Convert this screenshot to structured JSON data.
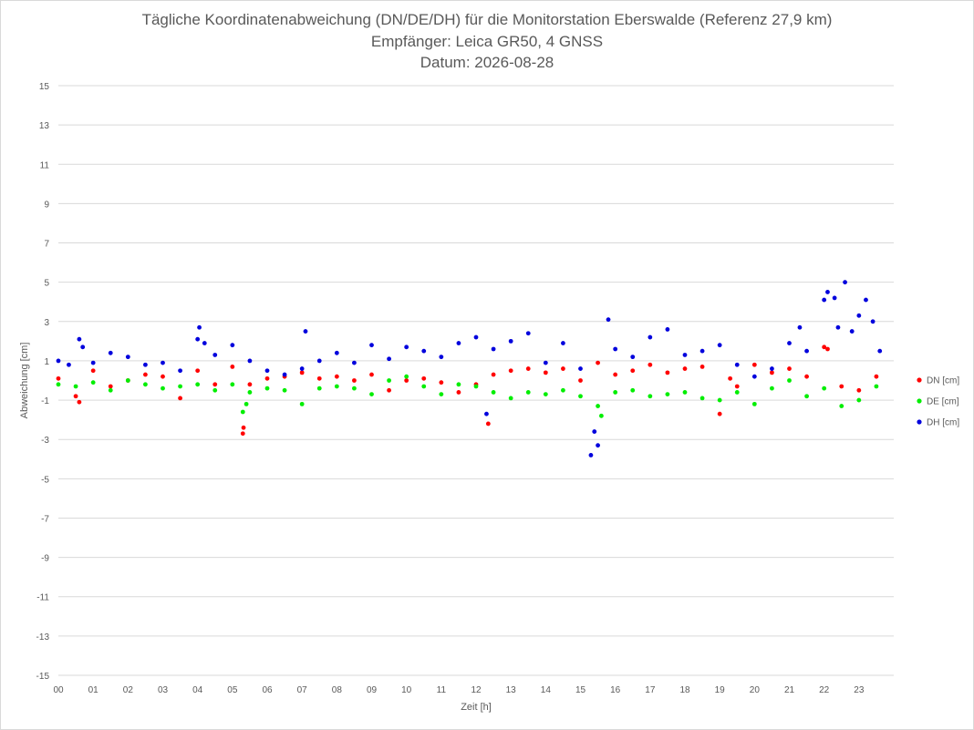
{
  "chart_data": {
    "type": "scatter",
    "title_lines": [
      "Tägliche Koordinatenabweichung (DN/DE/DH) für die Monitorstation Eberswalde (Referenz 27,9 km)",
      "Empfänger: Leica GR50, 4 GNSS",
      "Datum: 2026-08-28"
    ],
    "xlabel": "Zeit [h]",
    "ylabel": "Abweichung [cm]",
    "xlim": [
      0,
      24
    ],
    "ylim": [
      -15,
      15
    ],
    "xticks": [
      "00",
      "01",
      "02",
      "03",
      "04",
      "05",
      "06",
      "07",
      "08",
      "09",
      "10",
      "11",
      "12",
      "13",
      "14",
      "15",
      "16",
      "17",
      "18",
      "19",
      "20",
      "21",
      "22",
      "23"
    ],
    "yticks": [
      "15",
      "13",
      "11",
      "9",
      "7",
      "5",
      "3",
      "1",
      "-1",
      "-3",
      "-5",
      "-7",
      "-9",
      "-11",
      "-13",
      "-15"
    ],
    "grid": "horizontal",
    "legend_position": "right",
    "series": [
      {
        "name": "DN [cm]",
        "color": "#ff0000",
        "x": [
          0.0,
          0.5,
          0.6,
          1.0,
          1.5,
          2.0,
          2.5,
          3.0,
          3.5,
          4.0,
          4.5,
          5.0,
          5.3,
          5.32,
          5.5,
          6.0,
          6.5,
          7.0,
          7.5,
          8.0,
          8.5,
          9.0,
          9.5,
          10.0,
          10.5,
          11.0,
          11.5,
          12.0,
          12.35,
          12.5,
          13.0,
          13.5,
          14.0,
          14.5,
          15.0,
          15.5,
          16.0,
          16.5,
          17.0,
          17.5,
          18.0,
          18.5,
          19.0,
          19.3,
          19.5,
          20.0,
          20.5,
          21.0,
          21.5,
          22.0,
          22.1,
          22.5,
          23.0,
          23.5
        ],
        "y": [
          0.1,
          -0.8,
          -1.1,
          0.5,
          -0.3,
          0.0,
          0.3,
          0.2,
          -0.9,
          0.5,
          -0.2,
          0.7,
          -2.7,
          -2.4,
          -0.2,
          0.1,
          0.2,
          0.4,
          0.1,
          0.2,
          0.0,
          0.3,
          -0.5,
          0.0,
          0.1,
          -0.1,
          -0.6,
          -0.2,
          -2.2,
          0.3,
          0.5,
          0.6,
          0.4,
          0.6,
          0.0,
          0.9,
          0.3,
          0.5,
          0.8,
          0.4,
          0.6,
          0.7,
          -1.7,
          0.1,
          -0.3,
          0.8,
          0.4,
          0.6,
          0.2,
          1.7,
          1.6,
          -0.3,
          -0.5,
          0.2
        ]
      },
      {
        "name": "DE [cm]",
        "color": "#00ee00",
        "x": [
          0.0,
          0.5,
          1.0,
          1.5,
          2.0,
          2.5,
          3.0,
          3.5,
          4.0,
          4.5,
          5.0,
          5.3,
          5.4,
          5.5,
          6.0,
          6.5,
          7.0,
          7.5,
          8.0,
          8.5,
          9.0,
          9.5,
          10.0,
          10.5,
          11.0,
          11.5,
          12.0,
          12.5,
          13.0,
          13.5,
          14.0,
          14.5,
          15.0,
          15.5,
          15.6,
          16.0,
          16.5,
          17.0,
          17.5,
          18.0,
          18.5,
          19.0,
          19.5,
          20.0,
          20.5,
          21.0,
          21.5,
          22.0,
          22.5,
          23.0,
          23.5
        ],
        "y": [
          -0.2,
          -0.3,
          -0.1,
          -0.5,
          0.0,
          -0.2,
          -0.4,
          -0.3,
          -0.2,
          -0.5,
          -0.2,
          -1.6,
          -1.2,
          -0.6,
          -0.4,
          -0.5,
          -1.2,
          -0.4,
          -0.3,
          -0.4,
          -0.7,
          0.0,
          0.2,
          -0.3,
          -0.7,
          -0.2,
          -0.3,
          -0.6,
          -0.9,
          -0.6,
          -0.7,
          -0.5,
          -0.8,
          -1.3,
          -1.8,
          -0.6,
          -0.5,
          -0.8,
          -0.7,
          -0.6,
          -0.9,
          -1.0,
          -0.6,
          -1.2,
          -0.4,
          0.0,
          -0.8,
          -0.4,
          -1.3,
          -1.0,
          -0.3
        ]
      },
      {
        "name": "DH [cm]",
        "color": "#0000dd",
        "x": [
          0.0,
          0.3,
          0.6,
          0.7,
          1.0,
          1.5,
          2.0,
          2.5,
          3.0,
          3.5,
          4.0,
          4.05,
          4.2,
          4.5,
          5.0,
          5.5,
          6.0,
          6.5,
          7.0,
          7.1,
          7.5,
          8.0,
          8.5,
          9.0,
          9.5,
          10.0,
          10.5,
          11.0,
          11.5,
          12.0,
          12.3,
          12.5,
          13.0,
          13.5,
          14.0,
          14.5,
          15.0,
          15.3,
          15.4,
          15.5,
          15.8,
          16.0,
          16.5,
          17.0,
          17.5,
          18.0,
          18.5,
          19.0,
          19.5,
          20.0,
          20.5,
          21.0,
          21.3,
          21.5,
          22.0,
          22.1,
          22.3,
          22.4,
          22.6,
          22.8,
          23.0,
          23.2,
          23.4,
          23.6
        ],
        "y": [
          1.0,
          0.8,
          2.1,
          1.7,
          0.9,
          1.4,
          1.2,
          0.8,
          0.9,
          0.5,
          2.1,
          2.7,
          1.9,
          1.3,
          1.8,
          1.0,
          0.5,
          0.3,
          0.6,
          2.5,
          1.0,
          1.4,
          0.9,
          1.8,
          1.1,
          1.7,
          1.5,
          1.2,
          1.9,
          2.2,
          -1.7,
          1.6,
          2.0,
          2.4,
          0.9,
          1.9,
          0.6,
          -3.8,
          -2.6,
          -3.3,
          3.1,
          1.6,
          1.2,
          2.2,
          2.6,
          1.3,
          1.5,
          1.8,
          0.8,
          0.2,
          0.6,
          1.9,
          2.7,
          1.5,
          4.1,
          4.5,
          4.2,
          2.7,
          5.0,
          2.5,
          3.3,
          4.1,
          3.0,
          1.5
        ]
      }
    ]
  }
}
